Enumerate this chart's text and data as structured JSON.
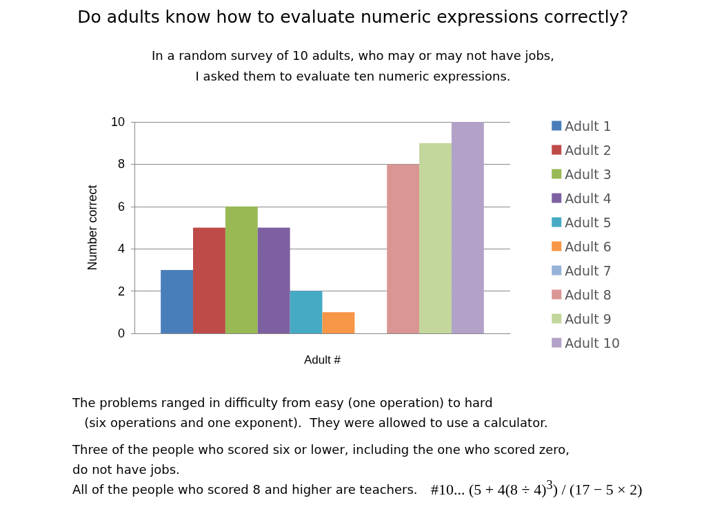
{
  "chart_data": {
    "type": "bar",
    "title": "Do adults know how to evaluate numeric expressions correctly?",
    "subtitle": "In a random survey of 10 adults,  who may or may not have jobs,\nI asked them to evaluate ten numeric expressions.",
    "xlabel": "Adult #",
    "ylabel": "Number correct",
    "categories": [
      null
    ],
    "series": [
      {
        "name": "Adult 1",
        "color": "#4a7ebb",
        "values": [
          3
        ]
      },
      {
        "name": "Adult 2",
        "color": "#be4b48",
        "values": [
          5
        ]
      },
      {
        "name": "Adult 3",
        "color": "#98b954",
        "values": [
          6
        ]
      },
      {
        "name": "Adult 4",
        "color": "#7d60a0",
        "values": [
          5
        ]
      },
      {
        "name": "Adult 5",
        "color": "#46aac5",
        "values": [
          2
        ]
      },
      {
        "name": "Adult 6",
        "color": "#f79646",
        "values": [
          1
        ]
      },
      {
        "name": "Adult 7",
        "color": "#95b3d7",
        "values": [
          0
        ]
      },
      {
        "name": "Adult 8",
        "color": "#d99694",
        "values": [
          8
        ]
      },
      {
        "name": "Adult 9",
        "color": "#c3d69b",
        "values": [
          9
        ]
      },
      {
        "name": "Adult 10",
        "color": "#b3a2c7",
        "values": [
          10
        ]
      }
    ],
    "ylim": [
      0,
      10
    ],
    "yticks": [
      0,
      2,
      4,
      6,
      8,
      10
    ],
    "grid": "y",
    "legend": "right",
    "annotations": [
      "The problems ranged in difficulty from easy (one operation) to hard\n   (six operations and one exponent).  They were allowed to use a calculator.",
      "Three of the people who scored six or lower, including the one who scored zero,\ndo not have jobs.\nAll of the people who scored 8 and higher are teachers.",
      "#10... (5 + 4(8 ÷ 4)$^{3}$) / (17 − 5 × 2)"
    ]
  }
}
